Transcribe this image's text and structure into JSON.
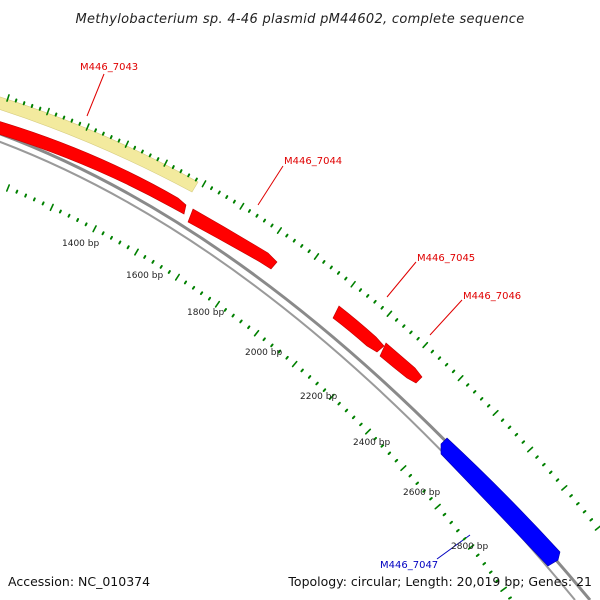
{
  "title": "Methylobacterium sp. 4-46 plasmid pM44602, complete sequence",
  "footer": {
    "accession": "Accession: NC_010374",
    "summary": "Topology: circular; Length: 20,019 bp; Genes: 21"
  },
  "colors": {
    "forward_gene": "#ff0000",
    "reverse_gene": "#0000ff",
    "highlight_band": "#f2e89b",
    "backbone": "#8c8c8c",
    "tick": "#008000"
  },
  "genes": [
    {
      "label": "M446_7043",
      "color": "#e00000"
    },
    {
      "label": "M446_7044",
      "color": "#e00000"
    },
    {
      "label": "M446_7045",
      "color": "#e00000"
    },
    {
      "label": "M446_7046",
      "color": "#e00000"
    },
    {
      "label": "M446_7047",
      "color": "#0000c0"
    }
  ],
  "ticks": [
    {
      "label": "1400 bp"
    },
    {
      "label": "1600 bp"
    },
    {
      "label": "1800 bp"
    },
    {
      "label": "2000 bp"
    },
    {
      "label": "2200 bp"
    },
    {
      "label": "2400 bp"
    },
    {
      "label": "2600 bp"
    },
    {
      "label": "2800 bp"
    }
  ]
}
